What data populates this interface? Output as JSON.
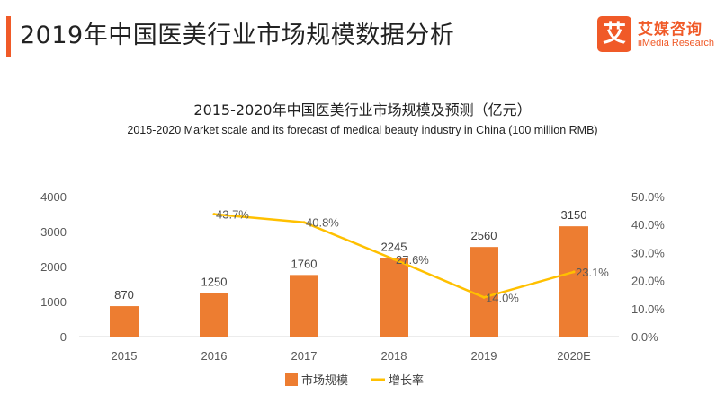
{
  "header": {
    "title": "2019年中国医美行业市场规模数据分析",
    "accent_color": "#f05a28"
  },
  "logo": {
    "mark": "艾",
    "name_cn": "艾媒咨询",
    "name_en": "iiMedia Research",
    "color": "#f05a28"
  },
  "chart_data": {
    "type": "bar",
    "title": "2015-2020年中国医美行业市场规模及预测（亿元）",
    "subtitle": "2015-2020 Market scale and its forecast of medical beauty industry in China (100 million RMB)",
    "categories": [
      "2015",
      "2016",
      "2017",
      "2018",
      "2019",
      "2020E"
    ],
    "series": [
      {
        "name": "市场规模",
        "type": "bar",
        "axis": "left",
        "color": "#ed7d31",
        "values": [
          870,
          1250,
          1760,
          2245,
          2560,
          3150
        ],
        "labels": [
          "870",
          "1250",
          "1760",
          "2245",
          "2560",
          "3150"
        ]
      },
      {
        "name": "增长率",
        "type": "line",
        "axis": "right",
        "color": "#ffc000",
        "values": [
          null,
          43.7,
          40.8,
          27.6,
          14.0,
          23.1
        ],
        "labels": [
          "",
          "43.7%",
          "40.8%",
          "27.6%",
          "14.0%",
          "23.1%"
        ]
      }
    ],
    "y_left": {
      "ylim": [
        0,
        4000
      ],
      "ticks": [
        "0",
        "1000",
        "2000",
        "3000",
        "4000"
      ]
    },
    "y_right": {
      "ylim": [
        0,
        50
      ],
      "ticks": [
        "0.0%",
        "10.0%",
        "20.0%",
        "30.0%",
        "40.0%",
        "50.0%"
      ]
    },
    "legend": {
      "position": "bottom",
      "items": [
        "市场规模",
        "增长率"
      ]
    },
    "grid": false
  }
}
